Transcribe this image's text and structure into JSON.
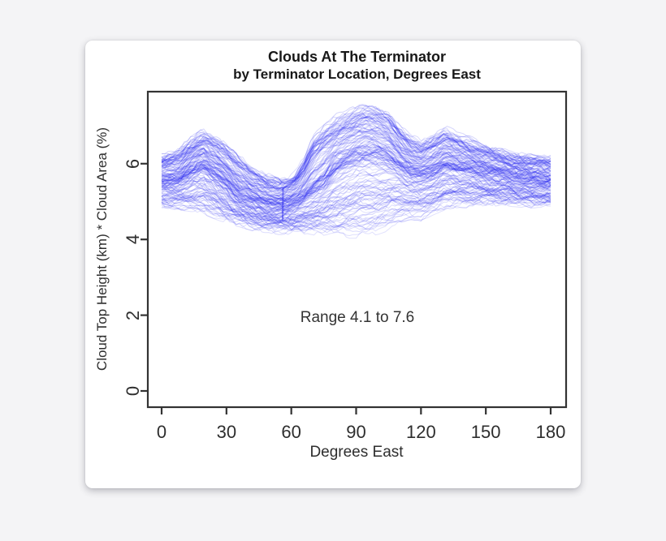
{
  "window": {
    "background": "#f4f4f6",
    "card_background": "#ffffff"
  },
  "chart_data": {
    "type": "line",
    "title": "Clouds At The Terminator",
    "subtitle": "by Terminator Location, Degrees East",
    "xlabel": "Degrees East",
    "ylabel": "Cloud Top Height (km) * Cloud Area (%)",
    "annotation": "Range 4.1 to 7.6",
    "range_min": 4.1,
    "range_max": 7.6,
    "x_ticks": [
      0,
      30,
      60,
      90,
      120,
      150,
      180
    ],
    "y_ticks": [
      0,
      2,
      4,
      6
    ],
    "xlim": [
      0,
      180
    ],
    "ylim": [
      0,
      7.9
    ],
    "grid": false,
    "legend": "none",
    "n_series_lines": 160,
    "seed": 7,
    "line_color": "#1c1cf0",
    "line_opacity": 0.13,
    "axis_color": "#333333",
    "band": {
      "x": [
        0,
        8,
        14,
        19,
        25,
        30,
        36,
        42,
        48,
        54,
        58,
        62,
        66,
        70,
        75,
        80,
        85,
        90,
        95,
        100,
        105,
        110,
        115,
        120,
        125,
        131,
        137,
        144,
        152,
        160,
        170,
        180
      ],
      "top": [
        6.25,
        6.4,
        6.7,
        6.9,
        6.7,
        6.5,
        6.2,
        5.9,
        5.7,
        5.6,
        5.65,
        5.8,
        6.2,
        6.8,
        7.1,
        7.25,
        7.4,
        7.55,
        7.6,
        7.55,
        7.4,
        7.0,
        6.75,
        6.6,
        6.75,
        6.95,
        6.8,
        6.65,
        6.45,
        6.3,
        6.2,
        6.15
      ],
      "center": [
        5.6,
        5.6,
        5.85,
        6.0,
        5.75,
        5.5,
        5.2,
        5.05,
        4.95,
        4.9,
        4.92,
        5.0,
        5.15,
        5.35,
        5.55,
        5.9,
        6.1,
        6.25,
        6.3,
        6.3,
        6.2,
        6.0,
        5.8,
        5.75,
        5.8,
        6.0,
        5.9,
        5.85,
        5.75,
        5.68,
        5.6,
        5.55
      ],
      "bottom": [
        4.9,
        4.85,
        4.8,
        4.75,
        4.6,
        4.5,
        4.4,
        4.3,
        4.25,
        4.2,
        4.2,
        4.2,
        4.2,
        4.15,
        4.15,
        4.1,
        4.1,
        4.1,
        4.15,
        4.2,
        4.3,
        4.5,
        4.6,
        4.55,
        4.7,
        4.85,
        4.9,
        4.9,
        4.95,
        4.95,
        4.9,
        4.9
      ]
    },
    "streak": {
      "x": 56,
      "v_from": 4.5,
      "v_to": 5.35
    }
  }
}
